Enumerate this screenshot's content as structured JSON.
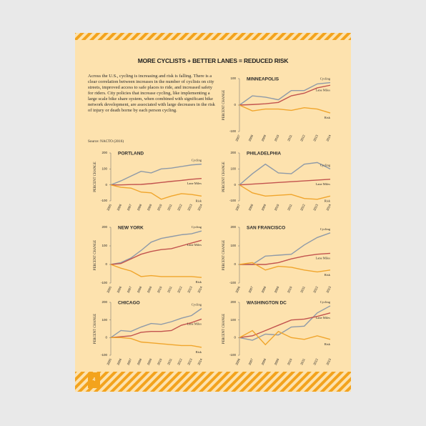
{
  "header": {
    "title": "MORE CYCLISTS + BETTER LANES = REDUCED RISK"
  },
  "intro": {
    "text": "Across the U.S., cycling is increasing and risk is falling. There is a clear correlation between increases in the number of cyclists on city streets, improved access to safe places to ride, and increased safety for riders. City policies that increase cycling, like implementing a large scale bike share system, when combined with significant bike network development, are associated with large decreases in the risk of injury or death borne by each person cycling.",
    "source": "Source: NACTO (2016)"
  },
  "footer": {
    "page_number": "4"
  },
  "chart_data": [
    {
      "type": "line",
      "title": "MINNEAPOLIS",
      "y_label": "PERCENT CHANGE",
      "categories": [
        "2007",
        "2008",
        "2009",
        "2010",
        "2011",
        "2012",
        "2013",
        "2014"
      ],
      "ylim": [
        -100,
        100
      ],
      "yticks": [
        -100,
        0,
        100
      ],
      "series": [
        {
          "name": "Cycling",
          "color": "#8e9aa8",
          "values": [
            0,
            35,
            30,
            20,
            55,
            55,
            80,
            85
          ]
        },
        {
          "name": "Lane Miles",
          "color": "#c2534e",
          "values": [
            0,
            2,
            5,
            10,
            35,
            45,
            65,
            75
          ]
        },
        {
          "name": "Risk",
          "color": "#f0a52c",
          "values": [
            0,
            -22,
            -15,
            -15,
            -20,
            -10,
            -15,
            -30
          ]
        }
      ]
    },
    {
      "type": "line",
      "title": "PORTLAND",
      "y_label": "PERCENT CHANGE",
      "categories": [
        "2005",
        "2006",
        "2007",
        "2008",
        "2009",
        "2010",
        "2011",
        "2012",
        "2013",
        "2014"
      ],
      "ylim": [
        -100,
        200
      ],
      "yticks": [
        -100,
        0,
        100,
        200
      ],
      "series": [
        {
          "name": "Cycling",
          "color": "#8e9aa8",
          "values": [
            0,
            25,
            55,
            85,
            75,
            100,
            105,
            115,
            125,
            130
          ]
        },
        {
          "name": "Lane Miles",
          "color": "#c2534e",
          "values": [
            0,
            0,
            2,
            3,
            8,
            15,
            22,
            28,
            35,
            40
          ]
        },
        {
          "name": "Risk",
          "color": "#f0a52c",
          "values": [
            0,
            -15,
            -20,
            -45,
            -50,
            -90,
            -70,
            -55,
            -60,
            -70
          ]
        }
      ]
    },
    {
      "type": "line",
      "title": "PHILADELPHIA",
      "y_label": "PERCENT CHANGE",
      "categories": [
        "2007",
        "2008",
        "2009",
        "2010",
        "2011",
        "2012",
        "2013",
        "2014"
      ],
      "ylim": [
        -100,
        200
      ],
      "yticks": [
        -100,
        0,
        100,
        200
      ],
      "series": [
        {
          "name": "Cycling",
          "color": "#8e9aa8",
          "values": [
            0,
            70,
            130,
            75,
            70,
            130,
            140,
            100
          ]
        },
        {
          "name": "Lane Miles",
          "color": "#c2534e",
          "values": [
            0,
            5,
            10,
            15,
            20,
            25,
            30,
            35
          ]
        },
        {
          "name": "Risk",
          "color": "#f0a52c",
          "values": [
            0,
            -50,
            -70,
            -65,
            -60,
            -85,
            -90,
            -70
          ]
        }
      ]
    },
    {
      "type": "line",
      "title": "NEW YORK",
      "y_label": "PERCENT CHANGE",
      "categories": [
        "2005",
        "2006",
        "2007",
        "2008",
        "2009",
        "2010",
        "2011",
        "2012",
        "2013",
        "2014"
      ],
      "ylim": [
        -100,
        200
      ],
      "yticks": [
        -100,
        0,
        100,
        200
      ],
      "series": [
        {
          "name": "Cycling",
          "color": "#8e9aa8",
          "values": [
            0,
            10,
            35,
            75,
            120,
            140,
            150,
            160,
            165,
            180
          ]
        },
        {
          "name": "Lane Miles",
          "color": "#c2534e",
          "values": [
            0,
            5,
            30,
            55,
            70,
            80,
            85,
            100,
            115,
            130
          ]
        },
        {
          "name": "Risk",
          "color": "#f0a52c",
          "values": [
            0,
            -20,
            -35,
            -65,
            -60,
            -65,
            -65,
            -65,
            -65,
            -70
          ]
        }
      ]
    },
    {
      "type": "line",
      "title": "SAN FRANCISCO",
      "y_label": "PERCENT CHANGE",
      "categories": [
        "2006",
        "2007",
        "2008",
        "2009",
        "2010",
        "2011",
        "2012",
        "2013"
      ],
      "ylim": [
        -100,
        200
      ],
      "yticks": [
        -100,
        0,
        100,
        200
      ],
      "series": [
        {
          "name": "Cycling",
          "color": "#8e9aa8",
          "values": [
            0,
            0,
            45,
            50,
            55,
            105,
            145,
            170
          ]
        },
        {
          "name": "Lane Miles",
          "color": "#c2534e",
          "values": [
            0,
            0,
            0,
            10,
            30,
            45,
            55,
            60
          ]
        },
        {
          "name": "Risk",
          "color": "#f0a52c",
          "values": [
            0,
            10,
            -30,
            -10,
            -15,
            -30,
            -40,
            -30
          ]
        }
      ]
    },
    {
      "type": "line",
      "title": "CHICAGO",
      "y_label": "PERCENT CHANGE",
      "categories": [
        "2005",
        "2006",
        "2007",
        "2008",
        "2009",
        "2010",
        "2011",
        "2012",
        "2013",
        "2014"
      ],
      "ylim": [
        -100,
        200
      ],
      "yticks": [
        -100,
        0,
        100,
        200
      ],
      "series": [
        {
          "name": "Cycling",
          "color": "#8e9aa8",
          "values": [
            0,
            40,
            35,
            60,
            80,
            75,
            90,
            110,
            125,
            165
          ]
        },
        {
          "name": "Lane Miles",
          "color": "#c2534e",
          "values": [
            0,
            5,
            10,
            30,
            35,
            35,
            40,
            70,
            85,
            105
          ]
        },
        {
          "name": "Risk",
          "color": "#f0a52c",
          "values": [
            0,
            0,
            -5,
            -25,
            -30,
            -35,
            -40,
            -45,
            -45,
            -55
          ]
        }
      ]
    },
    {
      "type": "line",
      "title": "WASHINGTON DC",
      "y_label": "PERCENT CHANGE",
      "categories": [
        "2006",
        "2007",
        "2008",
        "2009",
        "2010",
        "2011",
        "2012",
        "2013"
      ],
      "ylim": [
        -100,
        200
      ],
      "yticks": [
        -100,
        0,
        100,
        200
      ],
      "series": [
        {
          "name": "Cycling",
          "color": "#8e9aa8",
          "values": [
            0,
            -15,
            20,
            15,
            60,
            65,
            140,
            180
          ]
        },
        {
          "name": "Lane Miles",
          "color": "#c2534e",
          "values": [
            0,
            10,
            40,
            70,
            100,
            105,
            120,
            140
          ]
        },
        {
          "name": "Risk",
          "color": "#f0a52c",
          "values": [
            0,
            40,
            -40,
            35,
            0,
            -10,
            10,
            -10
          ]
        }
      ]
    }
  ]
}
